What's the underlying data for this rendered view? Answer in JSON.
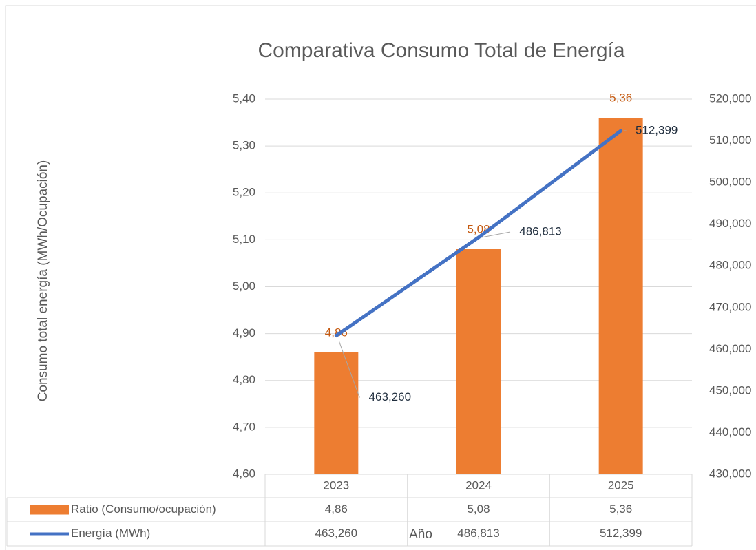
{
  "chart_data": {
    "type": "combo",
    "title": "Comparativa Consumo Total de Energía",
    "x_label": "Año",
    "y_label": "Consumo total energía (MWh/Ocupación)",
    "categories": [
      "2023",
      "2024",
      "2025"
    ],
    "series": [
      {
        "name": "Ratio (Consumo/ocupación)",
        "type": "bar",
        "axis": "y",
        "color": "#ed7d31",
        "label_color": "#c55a11",
        "values": [
          4.86,
          5.08,
          5.36
        ],
        "value_labels": [
          "4,86",
          "5,08",
          "5,36"
        ]
      },
      {
        "name": "Energía (MWh)",
        "type": "line",
        "axis": "y2",
        "color": "#4472c4",
        "label_color": "#1f2d3d",
        "values": [
          463260,
          486813,
          512399
        ],
        "value_labels": [
          "463,260",
          "486,813",
          "512,399"
        ]
      }
    ],
    "ylim": [
      4.6,
      5.4
    ],
    "yticks": [
      {
        "value": 4.6,
        "label": "4,60"
      },
      {
        "value": 4.7,
        "label": "4,70"
      },
      {
        "value": 4.8,
        "label": "4,80"
      },
      {
        "value": 4.9,
        "label": "4,90"
      },
      {
        "value": 5.0,
        "label": "5,00"
      },
      {
        "value": 5.1,
        "label": "5,10"
      },
      {
        "value": 5.2,
        "label": "5,20"
      },
      {
        "value": 5.3,
        "label": "5,30"
      },
      {
        "value": 5.4,
        "label": "5,40"
      }
    ],
    "y2lim": [
      430000,
      520000
    ],
    "y2ticks": [
      {
        "value": 430000,
        "label": "430,000"
      },
      {
        "value": 440000,
        "label": "440,000"
      },
      {
        "value": 450000,
        "label": "450,000"
      },
      {
        "value": 460000,
        "label": "460,000"
      },
      {
        "value": 470000,
        "label": "470,000"
      },
      {
        "value": 480000,
        "label": "480,000"
      },
      {
        "value": 490000,
        "label": "490,000"
      },
      {
        "value": 500000,
        "label": "500,000"
      },
      {
        "value": 510000,
        "label": "510,000"
      },
      {
        "value": 520000,
        "label": "520,000"
      }
    ],
    "grid": true,
    "data_table": true
  }
}
